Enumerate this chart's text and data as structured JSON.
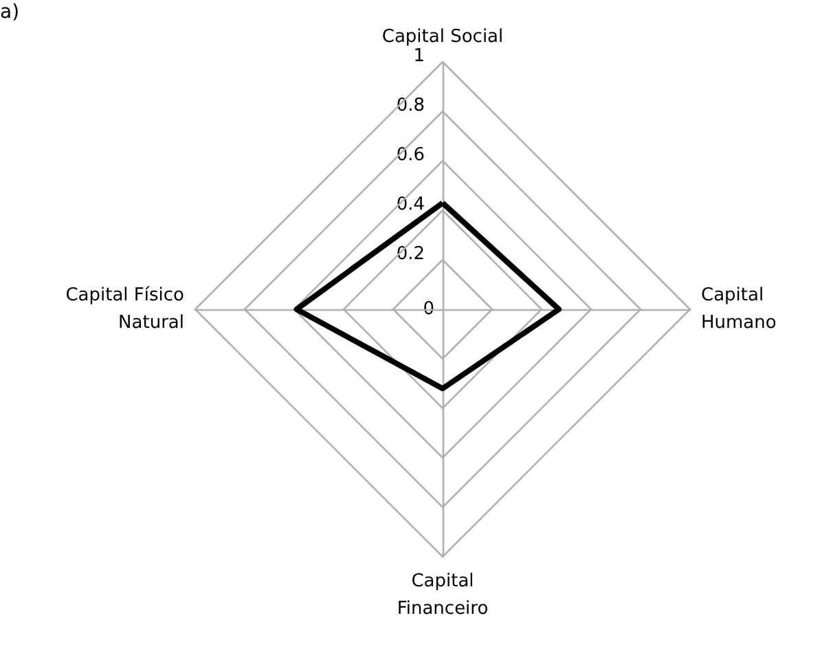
{
  "chart_data": {
    "type": "radar",
    "annotations": [
      "a)"
    ],
    "categories": [
      "Capital Social",
      "Capital\nHumano",
      "Capital\nFinanceiro",
      "Capital Físico\nNatural"
    ],
    "series": [
      {
        "color": "#000000",
        "values": [
          0.43,
          0.47,
          0.32,
          0.59
        ]
      }
    ],
    "ylim": [
      0,
      1
    ],
    "yticks": [
      0,
      0.2,
      0.4,
      0.6,
      0.8,
      1
    ],
    "grid": true,
    "marker": "none",
    "line_style": "solid"
  }
}
